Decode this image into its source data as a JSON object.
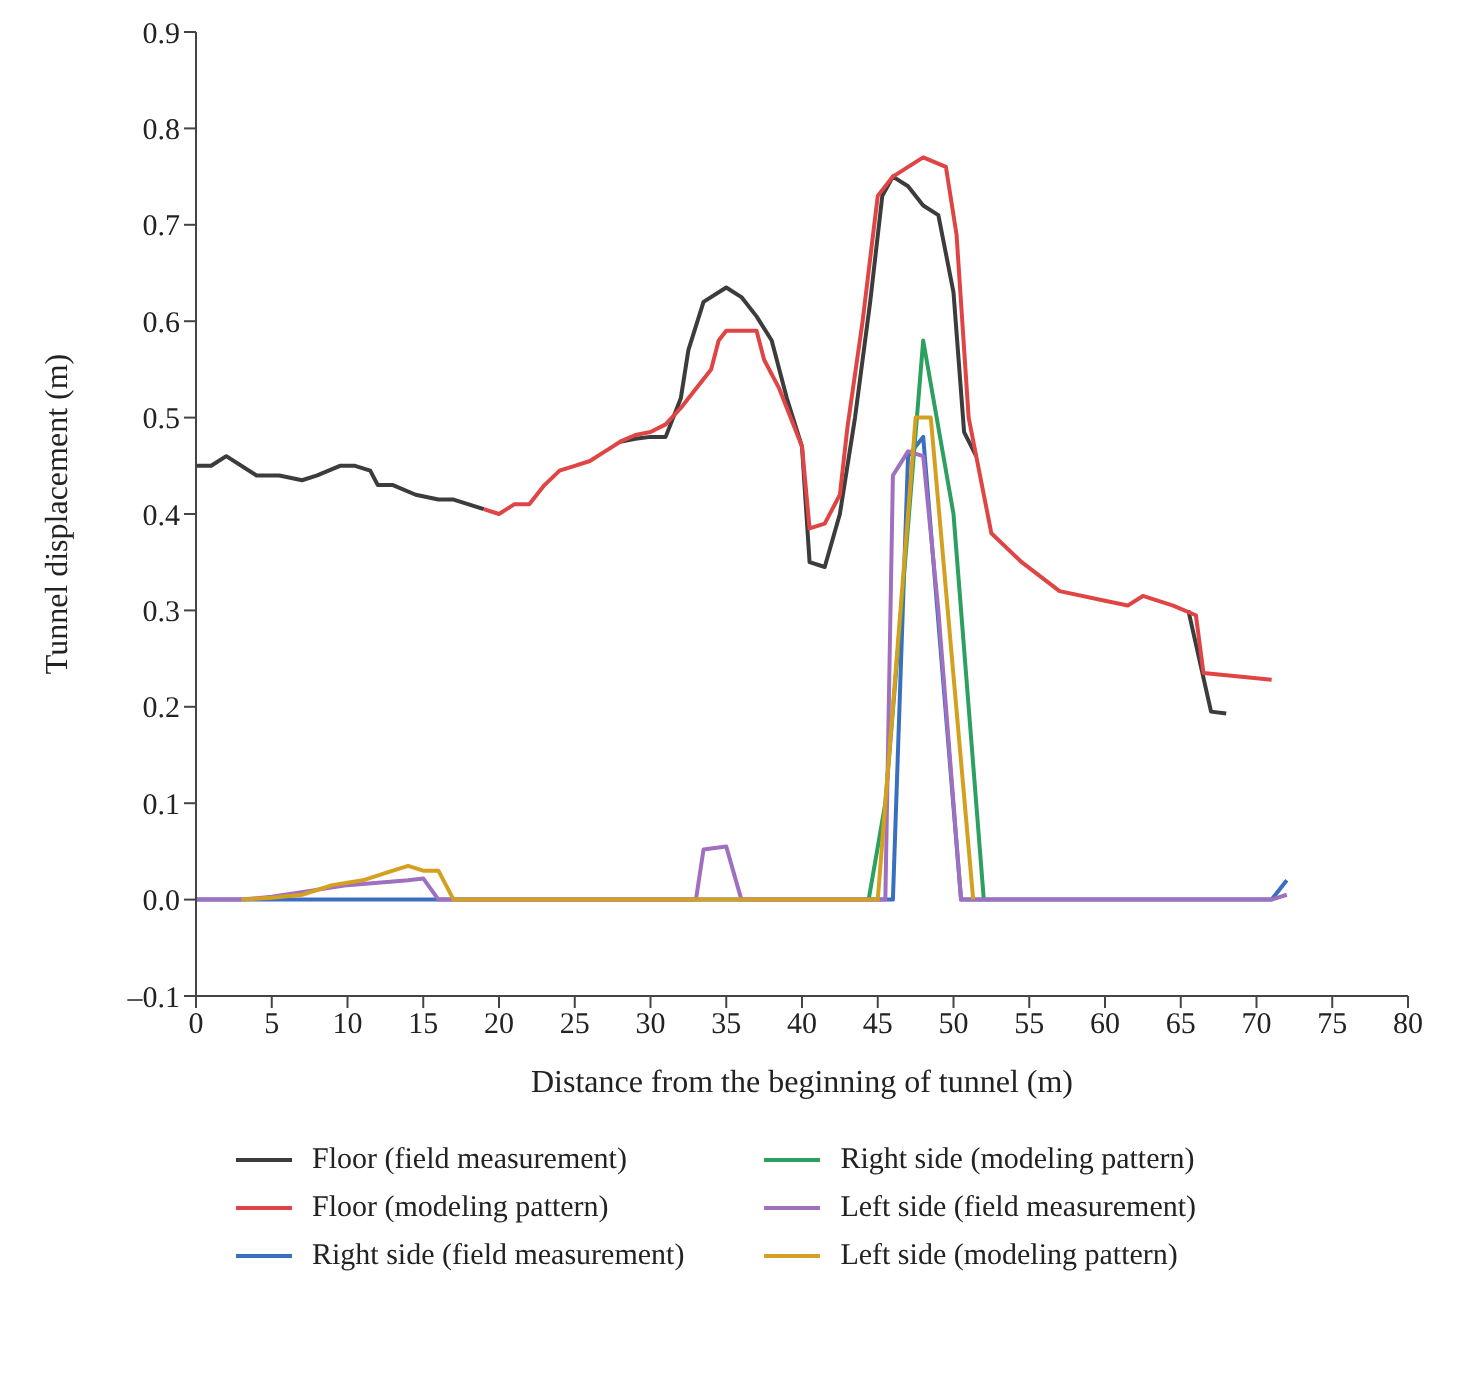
{
  "chart_data": {
    "type": "line",
    "xlabel": "Distance from the beginning of tunnel (m)",
    "ylabel": "Tunnel displacement (m)",
    "xlim": [
      0,
      80
    ],
    "xticks": [
      0,
      5,
      10,
      15,
      20,
      25,
      30,
      35,
      40,
      45,
      50,
      55,
      60,
      65,
      70,
      75,
      80
    ],
    "ylim": [
      -0.1,
      0.9
    ],
    "yticks": [
      {
        "value": -0.1,
        "label": "–0.1"
      },
      {
        "value": 0,
        "label": "0.0"
      },
      0.1,
      0.2,
      0.3,
      0.4,
      0.5,
      0.6,
      0.7,
      0.8,
      0.9
    ],
    "grid": false,
    "legend": "bottom",
    "marker": "none",
    "line_style": "solid",
    "series": [
      {
        "name": "Floor (field measurement)",
        "color": "#3c3c3c",
        "x": [
          0,
          1,
          2,
          4,
          5.5,
          7,
          8,
          9.5,
          10.5,
          11.5,
          12,
          13,
          14.5,
          16,
          17,
          18,
          19,
          20,
          21,
          22,
          23,
          24,
          25,
          26,
          27,
          28,
          29,
          30,
          31,
          32,
          32.5,
          33.5,
          35,
          36,
          37,
          38,
          39,
          40,
          40.5,
          41.5,
          42.5,
          43.5,
          44.5,
          45.3,
          46,
          47,
          48,
          49,
          50,
          50.7,
          51.5,
          52.5,
          54.5,
          57,
          60,
          61.5,
          62.5,
          64.5,
          65.5,
          67,
          68
        ],
        "values": [
          0.45,
          0.45,
          0.46,
          0.44,
          0.44,
          0.435,
          0.44,
          0.45,
          0.45,
          0.445,
          0.43,
          0.43,
          0.42,
          0.415,
          0.415,
          0.41,
          0.405,
          null,
          null,
          null,
          null,
          null,
          null,
          null,
          null,
          0.475,
          0.478,
          0.48,
          0.48,
          0.52,
          0.57,
          0.62,
          0.635,
          0.625,
          0.605,
          0.58,
          0.52,
          0.47,
          0.35,
          0.345,
          0.4,
          0.5,
          0.62,
          0.73,
          0.75,
          0.74,
          0.72,
          0.71,
          0.63,
          0.485,
          0.46,
          null,
          null,
          null,
          null,
          null,
          null,
          null,
          0.3,
          0.195,
          0.193
        ]
      },
      {
        "name": "Floor (modeling pattern)",
        "color": "#e04545",
        "x": [
          19,
          20,
          21,
          22,
          23,
          24,
          25,
          26,
          27,
          28,
          29,
          30,
          31,
          32,
          33,
          34,
          34.5,
          35,
          37,
          37.5,
          38.5,
          40,
          40.5,
          41.5,
          42.5,
          43,
          44,
          45,
          46,
          47.5,
          48,
          49.5,
          50.2,
          51,
          52.5,
          54.5,
          57,
          60,
          61.5,
          62.5,
          64.5,
          66,
          66.5,
          68.5,
          71
        ],
        "values": [
          0.405,
          0.4,
          0.41,
          0.41,
          0.43,
          0.445,
          0.45,
          0.455,
          0.465,
          0.475,
          0.482,
          0.485,
          0.493,
          0.51,
          0.53,
          0.55,
          0.58,
          0.59,
          0.59,
          0.56,
          0.53,
          0.47,
          0.385,
          0.39,
          0.42,
          0.49,
          0.6,
          0.73,
          0.75,
          0.765,
          0.77,
          0.76,
          0.69,
          0.5,
          0.38,
          0.35,
          0.32,
          0.31,
          0.305,
          0.315,
          0.305,
          0.295,
          0.235,
          0.232,
          0.228
        ]
      },
      {
        "name": "Right side (field measurement)",
        "color": "#3a6fc0",
        "x": [
          0,
          46,
          47,
          48,
          50.5,
          71,
          72
        ],
        "values": [
          0,
          0,
          0.46,
          0.48,
          0,
          0,
          0.02
        ]
      },
      {
        "name": "Right side (modeling pattern)",
        "color": "#2ca060",
        "x": [
          44.4,
          45.5,
          48,
          50,
          51,
          52
        ],
        "values": [
          0,
          0.1,
          0.58,
          0.4,
          0.2,
          0
        ]
      },
      {
        "name": "Left side (field measurement)",
        "color": "#a070c0",
        "x": [
          0,
          3,
          5,
          10,
          14,
          15,
          16,
          33,
          33.5,
          35,
          36,
          45.5,
          46,
          47,
          48,
          49,
          50.5,
          71,
          72
        ],
        "values": [
          0,
          0,
          0.003,
          0.015,
          0.02,
          0.022,
          0,
          0,
          0.052,
          0.055,
          0,
          0,
          0.44,
          0.465,
          0.46,
          0.3,
          0,
          0,
          0.005
        ]
      },
      {
        "name": "Left side (modeling pattern)",
        "color": "#d4a020",
        "x": [
          3,
          5,
          7,
          9,
          11,
          13,
          14,
          15,
          16,
          17,
          45,
          47.5,
          48.5,
          51.3
        ],
        "values": [
          0,
          0.002,
          0.005,
          0.015,
          0.02,
          0.03,
          0.035,
          0.03,
          0.03,
          0,
          0,
          0.5,
          0.5,
          0
        ]
      }
    ]
  }
}
